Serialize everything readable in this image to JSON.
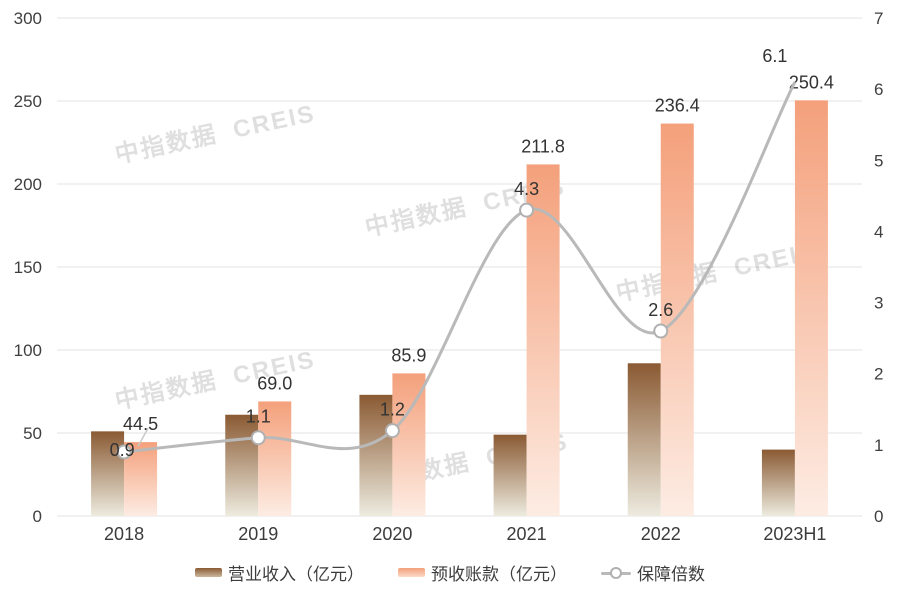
{
  "watermark_text": "中指数据 CREIS",
  "chart_data": {
    "type": "combo-bar-line",
    "categories": [
      "2018",
      "2019",
      "2020",
      "2021",
      "2022",
      "2023H1"
    ],
    "series": [
      {
        "name": "营业收入（亿元）",
        "type": "bar",
        "y_axis": "left",
        "values": [
          51,
          61,
          73,
          49,
          92,
          40
        ],
        "value_labels": null,
        "note": "values estimated from bar heights; no data labels shown"
      },
      {
        "name": "预收账款（亿元）",
        "type": "bar",
        "y_axis": "left",
        "values": [
          44.5,
          69.0,
          85.9,
          211.8,
          236.4,
          250.4
        ],
        "value_labels": [
          "44.5",
          "69.0",
          "85.9",
          "211.8",
          "236.4",
          "250.4"
        ]
      },
      {
        "name": "保障倍数",
        "type": "line",
        "y_axis": "right",
        "values": [
          0.9,
          1.1,
          1.2,
          4.3,
          2.6,
          6.1
        ],
        "value_labels": [
          "0.9",
          "1.1",
          "1.2",
          "4.3",
          "2.6",
          "6.1"
        ],
        "smooth": true,
        "markers": [
          true,
          true,
          true,
          true,
          true,
          false
        ]
      }
    ],
    "left_axis": {
      "min": 0,
      "max": 300,
      "step": 50,
      "tick_labels": [
        "0",
        "50",
        "100",
        "150",
        "200",
        "250",
        "300"
      ]
    },
    "right_axis": {
      "min": 0,
      "max": 7,
      "step": 1,
      "tick_labels": [
        "0",
        "1",
        "2",
        "3",
        "4",
        "5",
        "6",
        "7"
      ]
    },
    "grid": "horizontal",
    "legend_position": "bottom",
    "colors": {
      "revenue_bar_top": "#8a5a33",
      "revenue_bar_bottom": "#edebdf",
      "advance_bar_top": "#f4a07b",
      "advance_bar_bottom": "#fdece3",
      "trend_line": "#b9b9b9",
      "marker_fill": "#ffffff",
      "marker_stroke": "#b0b0b0",
      "gridline": "#e3e3e3",
      "tick_text": "#3f3f3f",
      "watermark": "#d9d9d9"
    }
  }
}
